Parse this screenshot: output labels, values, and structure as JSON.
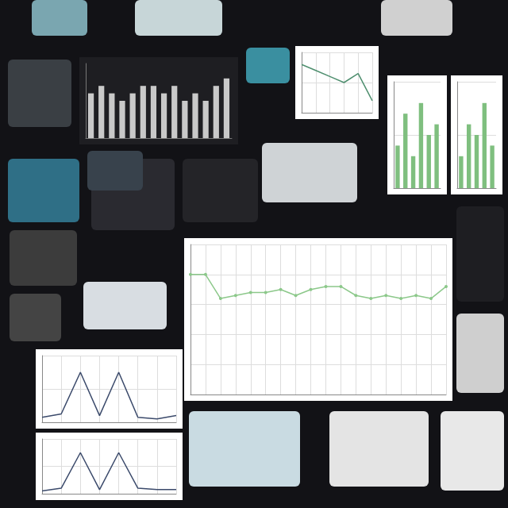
{
  "chart_data": [
    {
      "type": "line",
      "categories": [
        null,
        null,
        null,
        null,
        null,
        null,
        null,
        null,
        null,
        null,
        null,
        null,
        null,
        null,
        null,
        null,
        null,
        null
      ],
      "values": [
        4.0,
        4.0,
        3.2,
        3.3,
        3.4,
        3.4,
        3.5,
        3.3,
        3.5,
        3.6,
        3.6,
        3.3,
        3.2,
        3.3,
        3.2,
        3.3,
        3.2,
        3.6
      ],
      "color": "#8cc88a",
      "marker": "circle",
      "ylim": [
        0,
        5
      ],
      "yticks": [
        0,
        1,
        2,
        3,
        4,
        5
      ],
      "grid": true,
      "tick_labels": false
    },
    {
      "type": "bar",
      "categories": [
        null,
        null,
        null,
        null,
        null,
        null,
        null,
        null,
        null,
        null,
        null,
        null,
        null,
        null
      ],
      "values": [
        6,
        7,
        6,
        5,
        6,
        7,
        7,
        6,
        7,
        5,
        6,
        5,
        7,
        8
      ],
      "color": "#c9c9c9",
      "ylim": [
        0,
        10
      ],
      "yticks": [
        0,
        5,
        10
      ],
      "grid": false,
      "tick_labels": false
    },
    {
      "type": "line",
      "categories": [
        null,
        null,
        null,
        null,
        null,
        null,
        null,
        null
      ],
      "values": [
        0.3,
        0.5,
        3,
        0.4,
        3,
        0.3,
        0.2,
        0.4
      ],
      "color": "#3b4a6b",
      "ylim": [
        0,
        4
      ],
      "yticks": [
        0,
        2,
        4
      ],
      "grid": true,
      "tick_labels": false
    },
    {
      "type": "line",
      "categories": [
        null,
        null,
        null,
        null,
        null,
        null,
        null,
        null
      ],
      "values": [
        0.2,
        0.4,
        3,
        0.3,
        3,
        0.4,
        0.3,
        0.3
      ],
      "color": "#3b4a6b",
      "ylim": [
        0,
        4
      ],
      "yticks": [
        0,
        2,
        4
      ],
      "grid": true,
      "tick_labels": false
    },
    {
      "type": "line",
      "categories": [
        null,
        null,
        null,
        null,
        null,
        null
      ],
      "values": [
        8,
        7,
        6,
        5,
        6.5,
        2
      ],
      "color": "#4f8f6f",
      "ylim": [
        0,
        10
      ],
      "yticks": [
        0,
        5,
        10
      ],
      "grid": true,
      "tick_labels": false
    },
    {
      "type": "bar",
      "categories": [
        null,
        null,
        null,
        null,
        null,
        null
      ],
      "values": [
        4,
        7,
        3,
        8,
        5,
        6
      ],
      "color": "#7fbf7f",
      "ylim": [
        0,
        10
      ],
      "yticks": [
        0,
        5,
        10
      ],
      "grid": true,
      "tick_labels": false
    },
    {
      "type": "bar",
      "categories": [
        null,
        null,
        null,
        null,
        null
      ],
      "values": [
        3,
        6,
        5,
        8,
        4
      ],
      "color": "#7fbf7f",
      "ylim": [
        0,
        10
      ],
      "yticks": [
        0,
        5,
        10
      ],
      "grid": true,
      "tick_labels": false
    }
  ]
}
